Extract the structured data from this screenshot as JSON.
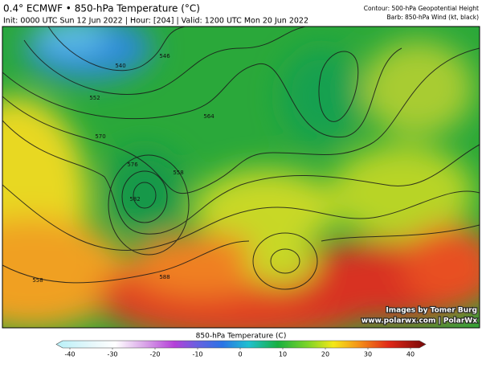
{
  "header": {
    "title": "0.4° ECMWF • 850-hPa Temperature (°C)",
    "subtitle": "Init: 0000 UTC Sun 12 Jun 2022 | Hour: [204] | Valid: 1200 UTC Mon 20 Jun 2022",
    "contour_note": "Contour: 500-hPa Geopotential Height",
    "barb_note": "Barb: 850-hPa Wind (kt, black)"
  },
  "map": {
    "contour_labels": [
      "540",
      "546",
      "552",
      "564",
      "570",
      "576",
      "582",
      "558",
      "588",
      "558"
    ],
    "credit": "Images by Tomer Burg",
    "website": "www.polarwx.com | PolarWx"
  },
  "colorbar": {
    "title": "850-hPa Temperature (C)",
    "ticks": [
      -40,
      -30,
      -20,
      -10,
      0,
      10,
      20,
      30,
      40
    ]
  }
}
